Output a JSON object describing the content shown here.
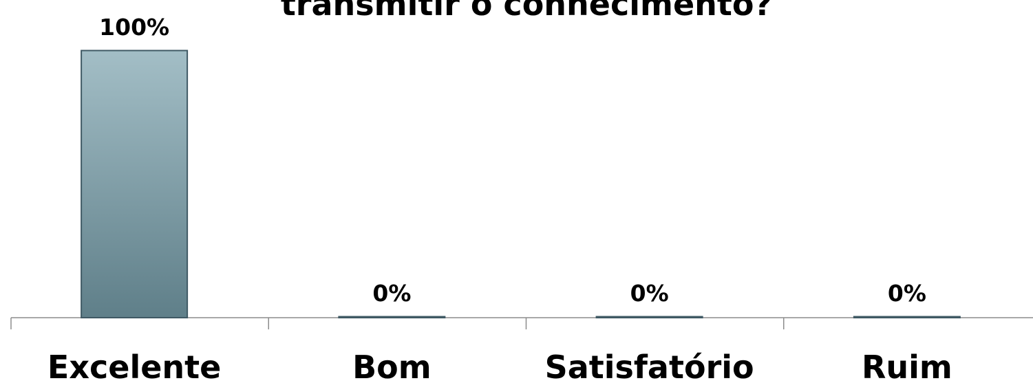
{
  "chart_data": {
    "type": "bar",
    "title": "transmitir o conhecimento?",
    "categories": [
      "Excelente",
      "Bom",
      "Satisfatório",
      "Ruim"
    ],
    "values": [
      100,
      0,
      0,
      0
    ],
    "value_labels": [
      "100%",
      "0%",
      "0%",
      "0%"
    ],
    "color": "#7f9ea8"
  }
}
